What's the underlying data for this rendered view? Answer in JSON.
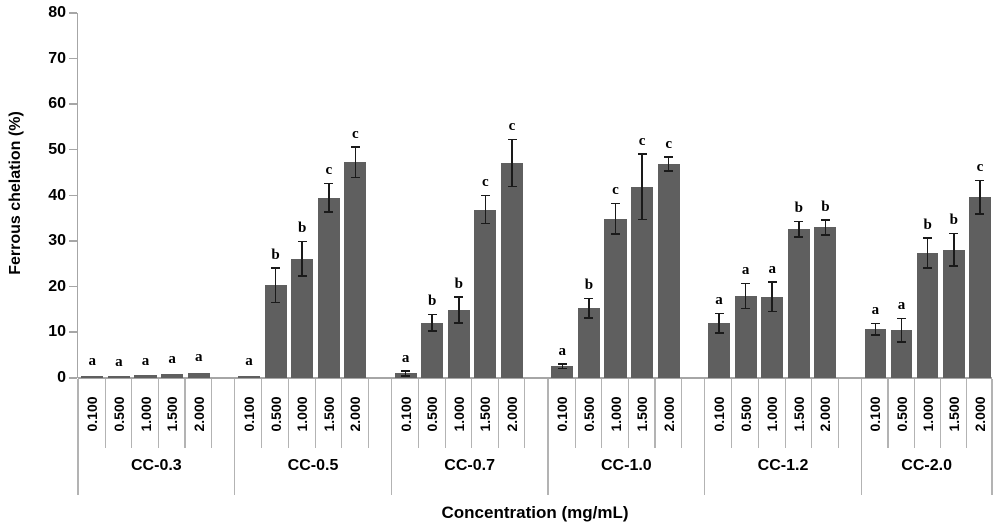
{
  "chart_data": {
    "type": "bar",
    "title": "",
    "ylabel": "Ferrous chelation (%)",
    "xlabel": "Concentration (mg/mL)",
    "ylim": [
      0,
      80
    ],
    "yticks": [
      0,
      10,
      20,
      30,
      40,
      50,
      60,
      70,
      80
    ],
    "grid": false,
    "legend": false,
    "bar_color": "#5f5f5f",
    "axis_color": "#a6a6a6",
    "error_color": "#1a1a1a",
    "categories": [
      "0.100",
      "0.500",
      "1.000",
      "1.500",
      "2.000"
    ],
    "groups": [
      {
        "name": "CC-0.3",
        "values": [
          0.5,
          0.4,
          0.6,
          0.9,
          1.2
        ],
        "errors": [
          0.15,
          0.1,
          0.15,
          0.25,
          0.25
        ],
        "letters": [
          "a",
          "a",
          "a",
          "a",
          "a"
        ]
      },
      {
        "name": "CC-0.5",
        "values": [
          0.5,
          20.3,
          26.1,
          39.5,
          47.3
        ],
        "errors": [
          0.15,
          3.6,
          3.6,
          3.0,
          3.2
        ],
        "letters": [
          "a",
          "b",
          "b",
          "c",
          "c"
        ]
      },
      {
        "name": "CC-0.7",
        "values": [
          1.0,
          12.1,
          14.9,
          36.9,
          47.1
        ],
        "errors": [
          0.4,
          1.6,
          2.7,
          2.9,
          5.0
        ],
        "letters": [
          "a",
          "b",
          "b",
          "c",
          "c"
        ]
      },
      {
        "name": "CC-1.0",
        "values": [
          2.6,
          15.3,
          34.9,
          41.9,
          46.9
        ],
        "errors": [
          0.3,
          2.0,
          3.2,
          7.0,
          1.4
        ],
        "letters": [
          "a",
          "b",
          "c",
          "c",
          "c"
        ]
      },
      {
        "name": "CC-1.2",
        "values": [
          12.0,
          18.0,
          17.8,
          32.6,
          33.0
        ],
        "errors": [
          2.0,
          2.6,
          3.1,
          1.5,
          1.5
        ],
        "letters": [
          "a",
          "a",
          "a",
          "b",
          "b"
        ]
      },
      {
        "name": "CC-2.0",
        "values": [
          10.7,
          10.5,
          27.4,
          28.1,
          39.6
        ],
        "errors": [
          1.1,
          2.4,
          3.1,
          3.4,
          3.5
        ],
        "letters": [
          "a",
          "a",
          "b",
          "b",
          "c"
        ]
      }
    ]
  }
}
